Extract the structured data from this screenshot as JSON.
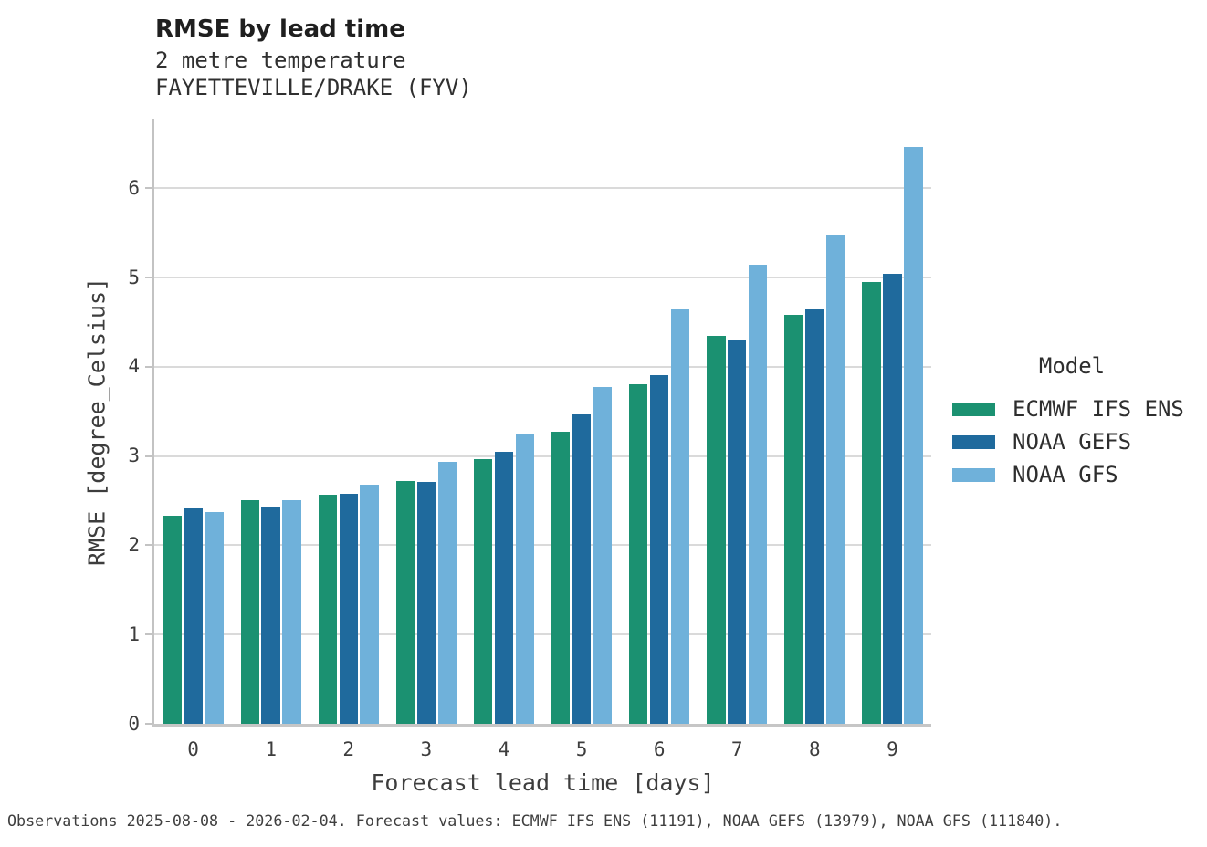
{
  "title": "RMSE by lead time",
  "subtitle1": "2 metre temperature",
  "subtitle2": "FAYETTEVILLE/DRAKE (FYV)",
  "caption": "Observations 2025-08-08 - 2026-02-04. Forecast values: ECMWF IFS ENS (11191), NOAA GEFS (13979), NOAA GFS (111840).",
  "legend": {
    "title": "Model",
    "items": [
      {
        "label": "ECMWF IFS ENS",
        "color": "#1b9171"
      },
      {
        "label": "NOAA GEFS",
        "color": "#1f6a9d"
      },
      {
        "label": "NOAA GFS",
        "color": "#6fb1da"
      }
    ]
  },
  "chart_data": {
    "type": "bar",
    "title": "RMSE by lead time",
    "subtitle": [
      "2 metre temperature",
      "FAYETTEVILLE/DRAKE (FYV)"
    ],
    "xlabel": "Forecast lead time [days]",
    "ylabel": "RMSE [degree_Celsius]",
    "categories": [
      "0",
      "1",
      "2",
      "3",
      "4",
      "5",
      "6",
      "7",
      "8",
      "9"
    ],
    "yticks": [
      0,
      1,
      2,
      3,
      4,
      5,
      6
    ],
    "ylim": [
      0,
      6.78
    ],
    "grid": "horizontal",
    "legend_position": "right",
    "series": [
      {
        "name": "ECMWF IFS ENS",
        "color": "#1b9171",
        "values": [
          2.33,
          2.51,
          2.57,
          2.72,
          2.97,
          3.27,
          3.8,
          4.35,
          4.58,
          4.95
        ]
      },
      {
        "name": "NOAA GEFS",
        "color": "#1f6a9d",
        "values": [
          2.41,
          2.43,
          2.58,
          2.71,
          3.05,
          3.47,
          3.91,
          4.3,
          4.64,
          5.04
        ]
      },
      {
        "name": "NOAA GFS",
        "color": "#6fb1da",
        "values": [
          2.37,
          2.51,
          2.68,
          2.93,
          3.25,
          3.77,
          4.64,
          5.14,
          5.47,
          6.46
        ]
      }
    ]
  }
}
